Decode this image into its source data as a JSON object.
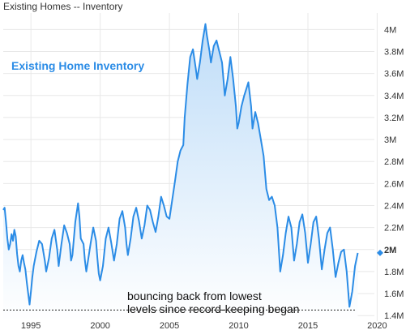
{
  "window": {
    "title": "Existing Homes -- Inventory"
  },
  "colors": {
    "line": "#2B8CE6",
    "fill_top": "#BFDDF8",
    "fill_bottom": "#FFFFFF",
    "grid": "#E8E8E8",
    "annotation_line": "#222222"
  },
  "chart_data": {
    "type": "area",
    "title": "Existing Homes -- Inventory",
    "series_label": "Existing Home Inventory",
    "xlabel": "",
    "ylabel": "",
    "xlim": [
      1993.0,
      2019.8
    ],
    "ylim": [
      1.35,
      4.15
    ],
    "x_ticks": [
      1995,
      2000,
      2005,
      2010,
      2015,
      2020
    ],
    "x_tick_labels": [
      "1995",
      "2000",
      "2005",
      "2010",
      "2015",
      "2020"
    ],
    "y_ticks": [
      1.4,
      1.6,
      1.8,
      2.0,
      2.2,
      2.4,
      2.6,
      2.8,
      3.0,
      3.2,
      3.4,
      3.6,
      3.8,
      4.0
    ],
    "y_tick_labels": [
      "1.4M",
      "1.6M",
      "1.8M",
      "2M",
      "2.2M",
      "2.4M",
      "2.6M",
      "2.8M",
      "3M",
      "3.2M",
      "3.4M",
      "3.6M",
      "3.8M",
      "4M"
    ],
    "last_value_marker": {
      "value": 1.97,
      "label": "2M"
    },
    "grid": true,
    "annotation": {
      "lines": [
        "bouncing back from lowest",
        "levels since record-keeping began"
      ],
      "reference_value": 1.45,
      "reference_x_range": [
        1993.0,
        2018.5
      ]
    },
    "series": [
      {
        "name": "Existing Home Inventory",
        "points": [
          [
            1993.0,
            2.36
          ],
          [
            1993.1,
            2.38
          ],
          [
            1993.2,
            2.25
          ],
          [
            1993.3,
            2.1
          ],
          [
            1993.4,
            2.0
          ],
          [
            1993.5,
            2.05
          ],
          [
            1993.6,
            2.14
          ],
          [
            1993.7,
            2.08
          ],
          [
            1993.8,
            2.18
          ],
          [
            1993.9,
            2.12
          ],
          [
            1994.0,
            1.96
          ],
          [
            1994.1,
            1.85
          ],
          [
            1994.2,
            1.8
          ],
          [
            1994.3,
            1.9
          ],
          [
            1994.4,
            1.95
          ],
          [
            1994.5,
            1.88
          ],
          [
            1994.6,
            1.82
          ],
          [
            1994.7,
            1.7
          ],
          [
            1994.8,
            1.6
          ],
          [
            1994.9,
            1.5
          ],
          [
            1995.0,
            1.62
          ],
          [
            1995.1,
            1.75
          ],
          [
            1995.2,
            1.85
          ],
          [
            1995.4,
            1.98
          ],
          [
            1995.6,
            2.08
          ],
          [
            1995.8,
            2.05
          ],
          [
            1996.0,
            1.9
          ],
          [
            1996.1,
            1.8
          ],
          [
            1996.3,
            1.92
          ],
          [
            1996.5,
            2.1
          ],
          [
            1996.7,
            2.18
          ],
          [
            1996.9,
            2.0
          ],
          [
            1997.0,
            1.85
          ],
          [
            1997.2,
            2.05
          ],
          [
            1997.4,
            2.22
          ],
          [
            1997.6,
            2.15
          ],
          [
            1997.8,
            2.05
          ],
          [
            1997.9,
            1.9
          ],
          [
            1998.0,
            1.95
          ],
          [
            1998.2,
            2.25
          ],
          [
            1998.4,
            2.42
          ],
          [
            1998.5,
            2.3
          ],
          [
            1998.6,
            2.1
          ],
          [
            1998.8,
            2.05
          ],
          [
            1998.9,
            1.9
          ],
          [
            1999.0,
            1.8
          ],
          [
            1999.1,
            1.88
          ],
          [
            1999.3,
            2.05
          ],
          [
            1999.5,
            2.2
          ],
          [
            1999.7,
            2.08
          ],
          [
            1999.8,
            1.92
          ],
          [
            1999.9,
            1.78
          ],
          [
            2000.0,
            1.72
          ],
          [
            2000.2,
            1.85
          ],
          [
            2000.4,
            2.1
          ],
          [
            2000.6,
            2.2
          ],
          [
            2000.8,
            2.06
          ],
          [
            2001.0,
            1.9
          ],
          [
            2001.2,
            2.05
          ],
          [
            2001.4,
            2.28
          ],
          [
            2001.6,
            2.35
          ],
          [
            2001.8,
            2.2
          ],
          [
            2001.9,
            2.05
          ],
          [
            2002.0,
            1.95
          ],
          [
            2002.2,
            2.1
          ],
          [
            2002.4,
            2.3
          ],
          [
            2002.6,
            2.38
          ],
          [
            2002.8,
            2.26
          ],
          [
            2003.0,
            2.1
          ],
          [
            2003.2,
            2.22
          ],
          [
            2003.4,
            2.4
          ],
          [
            2003.6,
            2.36
          ],
          [
            2003.8,
            2.25
          ],
          [
            2004.0,
            2.16
          ],
          [
            2004.2,
            2.3
          ],
          [
            2004.4,
            2.48
          ],
          [
            2004.6,
            2.4
          ],
          [
            2004.8,
            2.3
          ],
          [
            2005.0,
            2.28
          ],
          [
            2005.2,
            2.45
          ],
          [
            2005.4,
            2.62
          ],
          [
            2005.6,
            2.8
          ],
          [
            2005.8,
            2.9
          ],
          [
            2006.0,
            2.95
          ],
          [
            2006.1,
            3.2
          ],
          [
            2006.3,
            3.5
          ],
          [
            2006.5,
            3.75
          ],
          [
            2006.7,
            3.82
          ],
          [
            2006.9,
            3.65
          ],
          [
            2007.0,
            3.55
          ],
          [
            2007.2,
            3.7
          ],
          [
            2007.4,
            3.9
          ],
          [
            2007.6,
            4.05
          ],
          [
            2007.7,
            3.95
          ],
          [
            2007.9,
            3.8
          ],
          [
            2008.0,
            3.7
          ],
          [
            2008.2,
            3.85
          ],
          [
            2008.4,
            3.9
          ],
          [
            2008.6,
            3.8
          ],
          [
            2008.8,
            3.7
          ],
          [
            2009.0,
            3.4
          ],
          [
            2009.2,
            3.55
          ],
          [
            2009.4,
            3.75
          ],
          [
            2009.6,
            3.55
          ],
          [
            2009.8,
            3.3
          ],
          [
            2009.9,
            3.1
          ],
          [
            2010.0,
            3.15
          ],
          [
            2010.2,
            3.3
          ],
          [
            2010.4,
            3.4
          ],
          [
            2010.6,
            3.48
          ],
          [
            2010.7,
            3.52
          ],
          [
            2010.9,
            3.3
          ],
          [
            2011.0,
            3.1
          ],
          [
            2011.2,
            3.25
          ],
          [
            2011.4,
            3.15
          ],
          [
            2011.6,
            3.0
          ],
          [
            2011.8,
            2.85
          ],
          [
            2012.0,
            2.55
          ],
          [
            2012.2,
            2.45
          ],
          [
            2012.4,
            2.48
          ],
          [
            2012.6,
            2.4
          ],
          [
            2012.8,
            2.2
          ],
          [
            2013.0,
            1.8
          ],
          [
            2013.2,
            1.95
          ],
          [
            2013.4,
            2.15
          ],
          [
            2013.6,
            2.3
          ],
          [
            2013.8,
            2.2
          ],
          [
            2014.0,
            1.9
          ],
          [
            2014.2,
            2.05
          ],
          [
            2014.4,
            2.25
          ],
          [
            2014.6,
            2.32
          ],
          [
            2014.8,
            2.15
          ],
          [
            2015.0,
            1.88
          ],
          [
            2015.2,
            2.05
          ],
          [
            2015.4,
            2.25
          ],
          [
            2015.6,
            2.3
          ],
          [
            2015.8,
            2.1
          ],
          [
            2016.0,
            1.82
          ],
          [
            2016.2,
            2.0
          ],
          [
            2016.4,
            2.15
          ],
          [
            2016.6,
            2.2
          ],
          [
            2016.8,
            2.0
          ],
          [
            2017.0,
            1.75
          ],
          [
            2017.2,
            1.88
          ],
          [
            2017.4,
            1.98
          ],
          [
            2017.6,
            2.0
          ],
          [
            2017.8,
            1.8
          ],
          [
            2018.0,
            1.48
          ],
          [
            2018.2,
            1.62
          ],
          [
            2018.4,
            1.85
          ],
          [
            2018.6,
            1.97
          ]
        ]
      }
    ]
  }
}
